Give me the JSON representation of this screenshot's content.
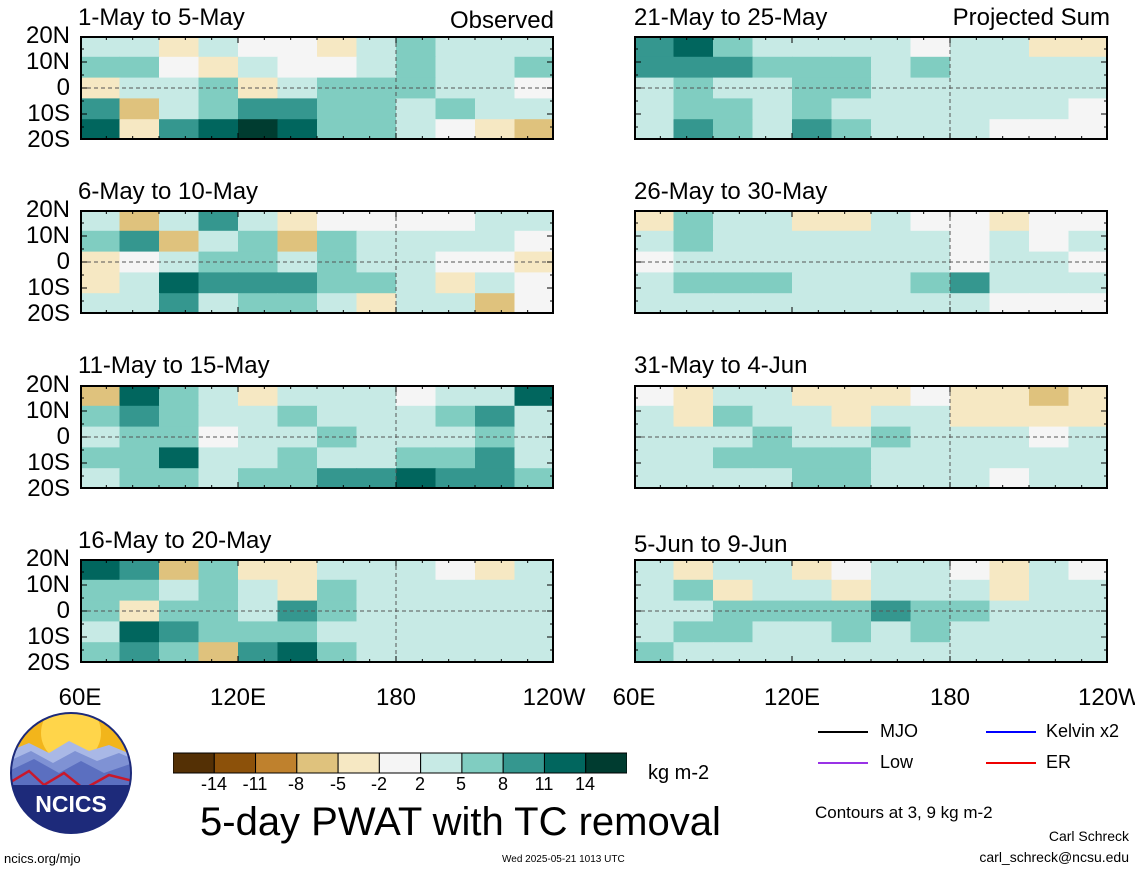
{
  "page": {
    "main_title": "5-day PWAT with TC removal",
    "units": "kg m-2",
    "contour_note": "Contours at 3, 9 kg m-2",
    "author": "Carl Schreck",
    "email": "carl_schreck@ncsu.edu",
    "site": "ncics.org/mjo",
    "timestamp": "Wed 2025-05-21 1013 UTC",
    "logo_text": "NCICS",
    "left_column_tag": "Observed",
    "right_column_tag": "Projected Sum"
  },
  "chart_data": {
    "type": "heatmap",
    "xlabel": "",
    "ylabel": "",
    "lat_ticks": [
      "20N",
      "10N",
      "0",
      "10S",
      "20S"
    ],
    "lat_range": [
      -20,
      20
    ],
    "lon_ticks": [
      "60E",
      "120E",
      "180",
      "120W"
    ],
    "lon_range": [
      60,
      240
    ],
    "colorbar": {
      "labels": [
        "-14",
        "-11",
        "-8",
        "-5",
        "-2",
        "2",
        "5",
        "8",
        "11",
        "14"
      ],
      "colors": [
        "#543005",
        "#8c510a",
        "#bf812d",
        "#dfc27d",
        "#f6e8c3",
        "#f5f5f5",
        "#c7eae5",
        "#80cdc1",
        "#35978f",
        "#01665e",
        "#003c30"
      ]
    },
    "legend": [
      {
        "name": "MJO",
        "color": "#000000"
      },
      {
        "name": "Kelvin x2",
        "color": "#0000ff"
      },
      {
        "name": "Low",
        "color": "#9932e6"
      },
      {
        "name": "ER",
        "color": "#ee0000"
      }
    ],
    "panels": [
      {
        "title": "1-May to 5-May",
        "column": "observed",
        "cells": [
          [
            2,
            4,
            -3,
            2,
            1,
            -2,
            -3,
            2,
            6,
            2,
            4,
            3
          ],
          [
            5,
            7,
            1,
            -4,
            2,
            -2,
            1,
            3,
            6,
            4,
            4,
            6
          ],
          [
            -5,
            2,
            4,
            6,
            -4,
            4,
            5,
            6,
            6,
            3,
            2,
            -1
          ],
          [
            8,
            -6,
            3,
            6,
            10,
            9,
            7,
            7,
            2,
            5,
            3,
            4
          ],
          [
            12,
            -5,
            8,
            12,
            14,
            11,
            5,
            6,
            3,
            -2,
            -4,
            -6
          ]
        ]
      },
      {
        "title": "6-May to 10-May",
        "column": "observed",
        "cells": [
          [
            4,
            -6,
            3,
            8,
            2,
            -3,
            1,
            -2,
            1,
            1,
            2,
            3
          ],
          [
            6,
            8,
            -6,
            4,
            5,
            -8,
            5,
            4,
            2,
            3,
            2,
            1
          ],
          [
            -3,
            1,
            4,
            7,
            5,
            4,
            6,
            4,
            3,
            1,
            -2,
            -3
          ],
          [
            -5,
            3,
            12,
            10,
            8,
            9,
            6,
            5,
            4,
            -4,
            2,
            1
          ],
          [
            2,
            4,
            9,
            3,
            7,
            6,
            2,
            -3,
            4,
            2,
            -6,
            1
          ]
        ]
      },
      {
        "title": "11-May to 15-May",
        "column": "observed",
        "cells": [
          [
            -8,
            12,
            5,
            3,
            -3,
            2,
            4,
            2,
            1,
            3,
            2,
            12
          ],
          [
            7,
            9,
            6,
            4,
            3,
            5,
            3,
            4,
            2,
            5,
            8,
            4
          ],
          [
            4,
            6,
            5,
            -2,
            3,
            4,
            5,
            3,
            2,
            3,
            5,
            3
          ],
          [
            5,
            7,
            11,
            4,
            3,
            6,
            4,
            3,
            5,
            7,
            9,
            4
          ],
          [
            2,
            5,
            6,
            4,
            5,
            7,
            9,
            10,
            12,
            9,
            8,
            6
          ]
        ]
      },
      {
        "title": "16-May to 20-May",
        "column": "observed",
        "cells": [
          [
            12,
            8,
            -6,
            5,
            -4,
            -5,
            3,
            2,
            2,
            1,
            -3,
            4
          ],
          [
            5,
            7,
            4,
            5,
            3,
            -4,
            6,
            3,
            2,
            2,
            4,
            2
          ],
          [
            6,
            -3,
            5,
            7,
            4,
            8,
            5,
            3,
            2,
            4,
            3,
            3
          ],
          [
            4,
            12,
            9,
            5,
            7,
            6,
            4,
            3,
            2,
            4,
            3,
            3
          ],
          [
            6,
            10,
            5,
            -8,
            9,
            12,
            6,
            4,
            3,
            2,
            4,
            3
          ]
        ]
      },
      {
        "title": "21-May to 25-May",
        "column": "projected",
        "cells": [
          [
            9,
            11,
            6,
            3,
            4,
            2,
            2,
            -2,
            3,
            2,
            -3,
            -4
          ],
          [
            10,
            9,
            8,
            7,
            6,
            5,
            4,
            5,
            4,
            3,
            2,
            3
          ],
          [
            3,
            5,
            4,
            4,
            6,
            5,
            4,
            3,
            3,
            2,
            4,
            2
          ],
          [
            3,
            5,
            7,
            4,
            6,
            4,
            3,
            3,
            3,
            2,
            2,
            1
          ],
          [
            2,
            10,
            6,
            4,
            8,
            5,
            2,
            2,
            2,
            1,
            1,
            1
          ]
        ]
      },
      {
        "title": "26-May to 30-May",
        "column": "projected",
        "cells": [
          [
            -3,
            5,
            3,
            2,
            -3,
            -4,
            2,
            1,
            -2,
            -3,
            1,
            -2
          ],
          [
            2,
            5,
            4,
            3,
            4,
            3,
            2,
            2,
            1,
            2,
            -2,
            3
          ],
          [
            1,
            2,
            3,
            3,
            4,
            3,
            2,
            2,
            1,
            2,
            2,
            1
          ],
          [
            4,
            6,
            7,
            5,
            4,
            3,
            3,
            5,
            8,
            3,
            2,
            2
          ],
          [
            2,
            3,
            3,
            2,
            3,
            3,
            2,
            3,
            2,
            1,
            1,
            1
          ]
        ]
      },
      {
        "title": "31-May to 4-Jun",
        "column": "projected",
        "cells": [
          [
            -2,
            -3,
            4,
            3,
            -3,
            -4,
            -3,
            -2,
            -4,
            -5,
            -6,
            -3
          ],
          [
            3,
            -4,
            5,
            4,
            3,
            -4,
            3,
            2,
            -3,
            -4,
            -5,
            -4
          ],
          [
            2,
            3,
            4,
            5,
            4,
            3,
            5,
            4,
            3,
            2,
            1,
            2
          ],
          [
            3,
            4,
            5,
            7,
            6,
            6,
            4,
            3,
            3,
            2,
            2,
            3
          ],
          [
            2,
            3,
            3,
            4,
            7,
            5,
            3,
            2,
            2,
            1,
            2,
            2
          ]
        ]
      },
      {
        "title": "5-Jun to 9-Jun",
        "column": "projected",
        "cells": [
          [
            3,
            -3,
            4,
            2,
            -3,
            -2,
            3,
            2,
            -2,
            -3,
            2,
            1
          ],
          [
            4,
            5,
            -4,
            3,
            3,
            -4,
            4,
            3,
            2,
            -3,
            3,
            2
          ],
          [
            3,
            4,
            7,
            6,
            5,
            7,
            8,
            7,
            5,
            3,
            3,
            2
          ],
          [
            4,
            5,
            6,
            4,
            4,
            5,
            4,
            5,
            3,
            3,
            3,
            2
          ],
          [
            5,
            4,
            3,
            3,
            4,
            4,
            3,
            3,
            2,
            2,
            2,
            2
          ]
        ]
      }
    ]
  }
}
